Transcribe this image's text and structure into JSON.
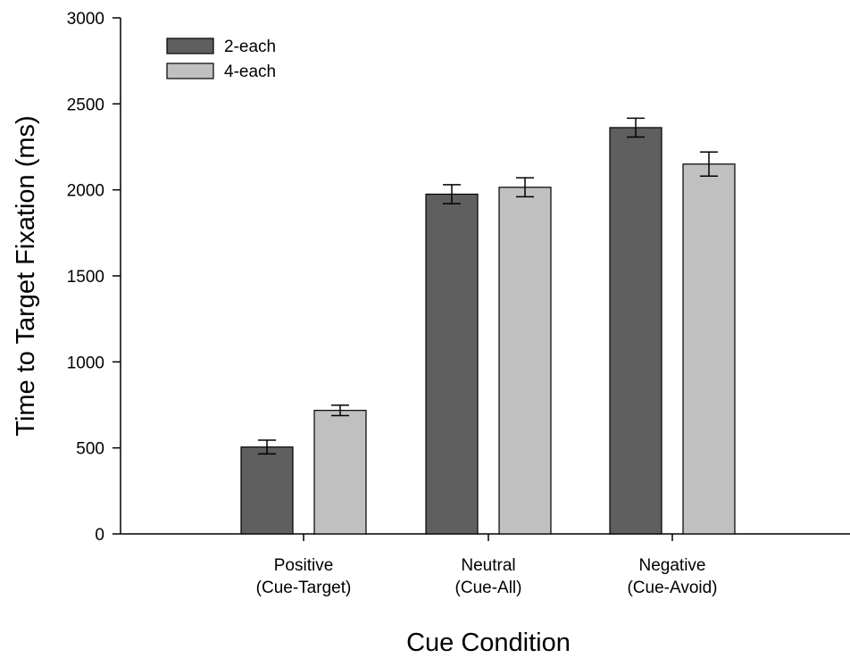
{
  "chart_data": {
    "type": "bar",
    "xlabel": "Cue Condition",
    "ylabel": "Time to Target Fixation (ms)",
    "ylim": [
      0,
      3000
    ],
    "yticks": [
      0,
      500,
      1000,
      1500,
      2000,
      2500,
      3000
    ],
    "categories": [
      {
        "line1": "Positive",
        "line2": "(Cue-Target)"
      },
      {
        "line1": "Neutral",
        "line2": "(Cue-All)"
      },
      {
        "line1": "Negative",
        "line2": "(Cue-Avoid)"
      }
    ],
    "series": [
      {
        "name": "2-each",
        "color": "#5f5f5f",
        "values": [
          505,
          1975,
          2362
        ],
        "error": [
          40,
          55,
          55
        ]
      },
      {
        "name": "4-each",
        "color": "#c0c0c0",
        "values": [
          718,
          2015,
          2150
        ],
        "error": [
          30,
          55,
          70
        ]
      }
    ],
    "legend_position": "top-left",
    "grid": false
  }
}
